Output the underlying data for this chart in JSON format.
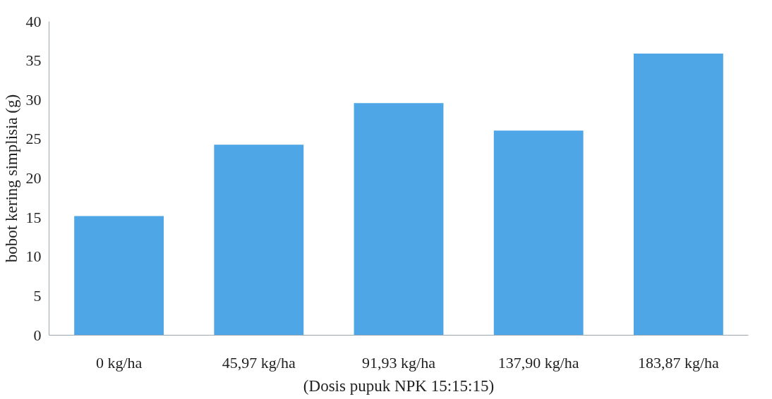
{
  "chart_data": {
    "type": "bar",
    "xlabel": "(Dosis pupuk NPK 15:15:15)",
    "ylabel": "bobot kering simplisia (g)",
    "categories": [
      "0 kg/ha",
      "45,97 kg/ha",
      "91,93 kg/ha",
      "137,90 kg/ha",
      "183,87 kg/ha"
    ],
    "values": [
      15.2,
      24.3,
      29.6,
      26.1,
      35.9
    ],
    "color": "#4ea6e6",
    "ylim": [
      0,
      40
    ],
    "yticks": [
      0,
      5,
      10,
      15,
      20,
      25,
      30,
      35,
      40
    ],
    "grid": false
  }
}
